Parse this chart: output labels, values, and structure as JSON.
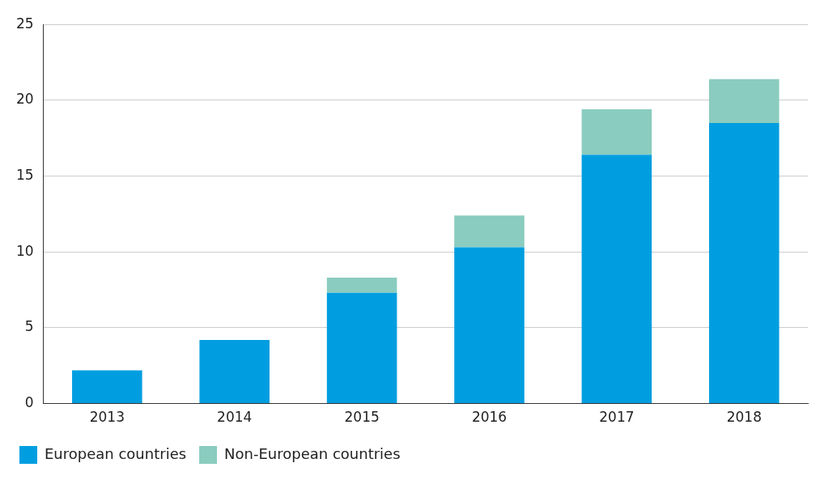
{
  "chart_data": {
    "type": "bar",
    "stacked": true,
    "categories": [
      "2013",
      "2014",
      "2015",
      "2016",
      "2017",
      "2018"
    ],
    "series": [
      {
        "name": "European countries",
        "color": "#009ee0",
        "values": [
          2.2,
          4.2,
          7.3,
          10.3,
          16.4,
          18.5
        ]
      },
      {
        "name": "Non-European countries",
        "color": "#8accbf",
        "values": [
          0,
          0,
          1.0,
          2.1,
          3.0,
          2.9
        ]
      }
    ],
    "ylim": [
      0,
      25
    ],
    "yticks": [
      0,
      5,
      10,
      15,
      20,
      25
    ],
    "grid": "y",
    "legend": "bottom left"
  }
}
